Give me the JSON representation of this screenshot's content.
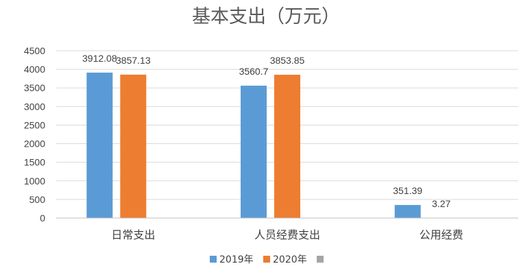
{
  "chart_data": {
    "type": "bar",
    "title": "基本支出（万元）",
    "categories": [
      "日常支出",
      "人员经费支出",
      "公用经费"
    ],
    "series": [
      {
        "name": "2019年",
        "values": [
          3912.08,
          3560.7,
          351.39
        ],
        "labels": [
          "3912.08",
          "3560.7",
          "351.39"
        ],
        "color": "#5B9BD5"
      },
      {
        "name": "2020年",
        "values": [
          3857.13,
          3853.85,
          3.27
        ],
        "labels": [
          "3857.13",
          "3853.85",
          "3.27"
        ],
        "color": "#ED7D31"
      },
      {
        "name": "",
        "values": [
          0,
          0,
          0
        ],
        "labels": [
          "",
          "",
          ""
        ],
        "color": "#A5A5A5"
      }
    ],
    "ylim": [
      0,
      4500
    ],
    "yticks": [
      "0",
      "500",
      "1000",
      "1500",
      "2000",
      "2500",
      "3000",
      "3500",
      "4000",
      "4500"
    ],
    "grid": true,
    "legend": "bottom",
    "colors": {
      "grid": "#D9D9D9",
      "axis": "#BFBFBF"
    }
  }
}
